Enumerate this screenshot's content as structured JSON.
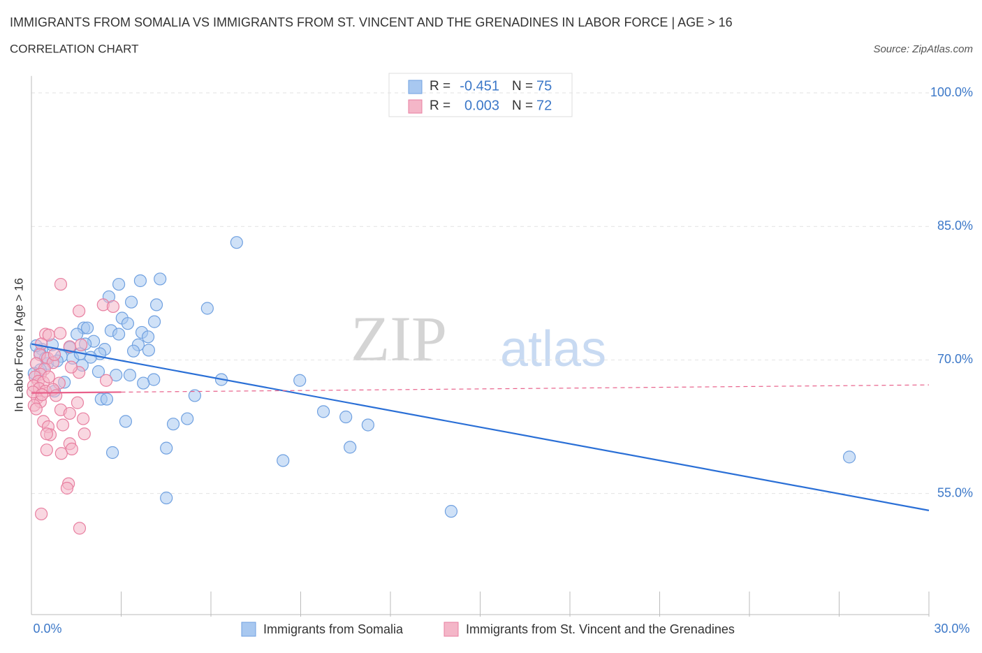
{
  "chart_data": {
    "type": "scatter",
    "title": "IMMIGRANTS FROM SOMALIA VS IMMIGRANTS FROM ST. VINCENT AND THE GRENADINES IN LABOR FORCE | AGE > 16",
    "subtitle": "CORRELATION CHART",
    "source": "Source: ZipAtlas.com",
    "ylabel": "In Labor Force | Age > 16",
    "watermark": {
      "zip": "ZIP",
      "atlas": "atlas"
    },
    "xlim": [
      0,
      30
    ],
    "ylim": [
      41.4,
      101.9
    ],
    "xticks": [
      {
        "value": 0,
        "label": "0.0%"
      },
      {
        "value": 30,
        "label": "30.0%"
      }
    ],
    "xminor_ticks": [
      3,
      6,
      9,
      12,
      15,
      18,
      21,
      24,
      27,
      30
    ],
    "yticks": [
      {
        "value": 55,
        "label": "55.0%"
      },
      {
        "value": 70,
        "label": "70.0%"
      },
      {
        "value": 85,
        "label": "85.0%"
      },
      {
        "value": 100,
        "label": "100.0%"
      }
    ],
    "grid": true,
    "stat_labels": {
      "r": "R =",
      "n": "N ="
    },
    "series": [
      {
        "name": "Immigrants from Somalia",
        "color": "#6fa0e0",
        "fill": "#a8c8f0",
        "r": -0.451,
        "n": 75,
        "trend": {
          "x": [
            0,
            30
          ],
          "y": [
            71.8,
            53.1
          ],
          "color": "#2a6fd6"
        },
        "trend_solid_to": 30,
        "x": [
          6.86,
          2.92,
          3.64,
          4.3,
          2.59,
          3.34,
          4.18,
          5.88,
          3.03,
          3.22,
          4.11,
          2.66,
          1.75,
          1.87,
          1.52,
          3.69,
          3.9,
          3.57,
          3.41,
          3.92,
          2.45,
          2.08,
          1.8,
          1.28,
          0.7,
          0.35,
          1.0,
          2.29,
          1.98,
          1.38,
          1.7,
          0.54,
          0.28,
          0.86,
          2.24,
          2.83,
          3.29,
          4.09,
          3.74,
          1.1,
          0.77,
          6.35,
          8.97,
          5.46,
          2.33,
          2.52,
          9.76,
          10.51,
          3.15,
          5.21,
          4.74,
          11.25,
          10.65,
          4.51,
          2.71,
          8.41,
          27.34,
          4.51,
          14.03,
          1.63,
          2.92,
          0.3,
          0.09,
          0.47,
          0.16
        ],
        "values": [
          83.2,
          78.5,
          78.9,
          79.1,
          77.1,
          76.5,
          76.2,
          75.8,
          74.7,
          74.1,
          74.3,
          73.3,
          73.6,
          73.6,
          72.9,
          73.1,
          72.6,
          71.7,
          71.0,
          71.1,
          71.2,
          72.1,
          71.8,
          71.4,
          71.7,
          71.2,
          70.4,
          70.7,
          70.3,
          70.2,
          69.4,
          69.6,
          70.8,
          69.9,
          68.7,
          68.3,
          68.3,
          67.8,
          67.4,
          67.5,
          66.5,
          67.8,
          67.7,
          66.0,
          65.6,
          65.6,
          64.2,
          63.6,
          63.1,
          63.4,
          62.8,
          62.7,
          60.2,
          60.1,
          59.6,
          58.7,
          59.1,
          54.5,
          53.0,
          70.7,
          72.9,
          68.9,
          68.5,
          70.2,
          71.6
        ]
      },
      {
        "name": "Immigrants from St. Vincent and the Grenadines",
        "color": "#e87fa0",
        "fill": "#f4b6c8",
        "r": 0.003,
        "n": 72,
        "trend": {
          "x": [
            0,
            30
          ],
          "y": [
            66.3,
            67.2
          ],
          "color": "#e8608a"
        },
        "trend_solid_to": 3,
        "x": [
          0.98,
          1.59,
          2.4,
          2.73,
          0.47,
          0.58,
          0.96,
          0.33,
          1.28,
          0.28,
          0.54,
          0.72,
          0.16,
          0.44,
          0.3,
          0.12,
          0.23,
          0.4,
          0.58,
          0.07,
          0.26,
          0.47,
          1.59,
          0.93,
          0.72,
          2.5,
          0.19,
          0.3,
          0.09,
          1.54,
          0.16,
          0.98,
          1.28,
          1.73,
          0.4,
          1.05,
          0.56,
          0.63,
          0.51,
          1.77,
          1.28,
          1.35,
          1.0,
          0.51,
          1.24,
          1.19,
          0.33,
          1.61,
          0.77,
          0.82,
          0.05,
          0.35,
          1.33,
          1.66
        ],
        "values": [
          78.5,
          75.5,
          76.2,
          76.0,
          72.9,
          72.8,
          73.0,
          71.8,
          71.5,
          70.6,
          70.2,
          69.7,
          69.6,
          69.0,
          68.4,
          68.1,
          67.6,
          67.5,
          68.1,
          67.1,
          66.8,
          66.5,
          68.6,
          67.4,
          66.7,
          67.7,
          65.7,
          65.3,
          64.9,
          65.2,
          64.5,
          64.4,
          64.0,
          63.4,
          63.1,
          62.7,
          62.5,
          61.6,
          61.7,
          61.7,
          60.6,
          60.0,
          59.5,
          59.9,
          56.1,
          55.6,
          52.7,
          51.1,
          70.6,
          66.0,
          66.4,
          66.1,
          69.2,
          71.7
        ]
      }
    ]
  }
}
